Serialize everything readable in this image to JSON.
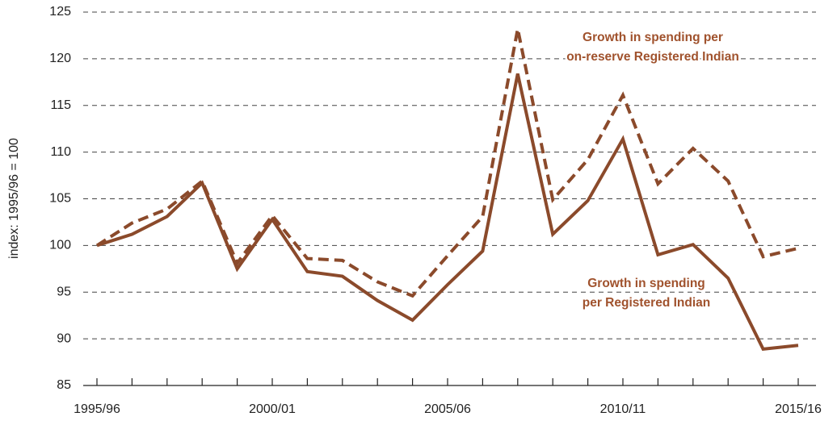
{
  "chart_data": {
    "type": "line",
    "y_label": "index: 1995/96 = 100",
    "categories": [
      "1995/96",
      null,
      null,
      null,
      null,
      "2000/01",
      null,
      null,
      null,
      null,
      "2005/06",
      null,
      null,
      null,
      null,
      "2010/11",
      null,
      null,
      null,
      null,
      "2015/16"
    ],
    "series": [
      {
        "color": "#8b4a2b",
        "dash": false,
        "values": [
          100,
          101.2,
          103.1,
          106.7,
          97.5,
          102.8,
          97.2,
          96.7,
          94.1,
          92.0,
          95.8,
          99.4,
          118.4,
          101.2,
          104.8,
          111.4,
          99.0,
          100.1,
          96.5,
          88.9,
          89.3
        ]
      },
      {
        "color": "#8b4a2b",
        "dash": true,
        "values": [
          100,
          102.4,
          103.9,
          106.9,
          98.1,
          103.2,
          98.6,
          98.4,
          96.1,
          94.6,
          98.9,
          103.1,
          123.2,
          104.9,
          109.2,
          116.1,
          106.6,
          110.4,
          106.9,
          98.8,
          99.7
        ]
      }
    ],
    "annotations": [
      {
        "lines": [
          "Growth in spending per",
          "on-reserve Registered Indian"
        ],
        "color": "#a0522d"
      },
      {
        "lines": [
          "Growth in spending",
          "per Registered Indian"
        ],
        "color": "#a0522d"
      }
    ],
    "ylim": [
      85,
      125
    ],
    "yticks": [
      85,
      90,
      95,
      100,
      105,
      110,
      115,
      120,
      125
    ],
    "grid": true
  }
}
